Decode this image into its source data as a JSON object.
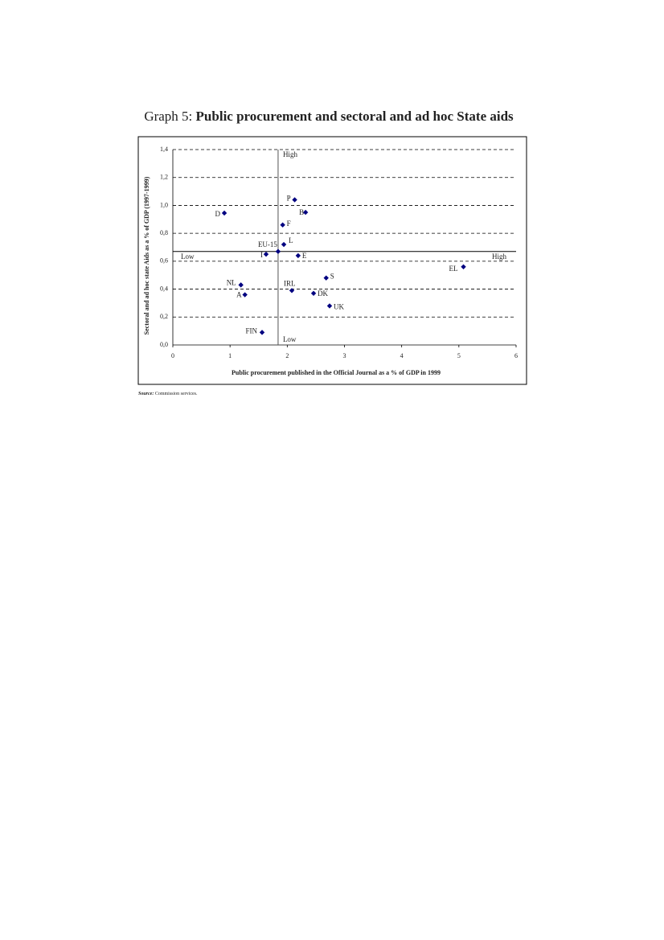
{
  "chart_data": {
    "type": "scatter",
    "title_prefix": "Graph 5:",
    "title": "Public procurement and sectoral and ad hoc State aids",
    "x_label": "Public procurement published in the Official Journal as a % of GDP in 1999",
    "y_label": "Sectoral and ad hoc state Aids as a % of GDP (1997-1999)",
    "labels": [
      "D",
      "P",
      "B",
      "F",
      "L",
      "EU-15",
      "I",
      "E",
      "EL",
      "NL",
      "A",
      "S",
      "IRL",
      "DK",
      "UK",
      "FIN"
    ],
    "x": [
      0.9,
      2.13,
      2.32,
      1.92,
      1.94,
      1.84,
      1.63,
      2.19,
      5.08,
      1.19,
      1.26,
      2.68,
      2.08,
      2.46,
      2.74,
      1.56
    ],
    "values": [
      0.945,
      1.04,
      0.95,
      0.86,
      0.72,
      0.67,
      0.65,
      0.64,
      0.56,
      0.43,
      0.36,
      0.48,
      0.39,
      0.37,
      0.28,
      0.09
    ],
    "color": "#000080",
    "vline": 1.84,
    "hline": 0.67,
    "quadrant_labels": {
      "top": "High",
      "left": "Low",
      "right": "High",
      "bottom": "Low"
    },
    "xlim": [
      0,
      6
    ],
    "xticks": [
      0,
      1,
      2,
      3,
      4,
      5,
      6
    ],
    "ylim": [
      0,
      1.4
    ],
    "yticks": [
      {
        "value": 0,
        "label": "0,0"
      },
      {
        "value": 0.2,
        "label": "0,2"
      },
      {
        "value": 0.4,
        "label": "0,4"
      },
      {
        "value": 0.6,
        "label": "0,6"
      },
      {
        "value": 0.8,
        "label": "0,8"
      },
      {
        "value": 1.0,
        "label": "1,0"
      },
      {
        "value": 1.2,
        "label": "1,2"
      },
      {
        "value": 1.4,
        "label": "1,4"
      }
    ],
    "grid": true,
    "source_label": "Source:",
    "source": "Commission services."
  }
}
